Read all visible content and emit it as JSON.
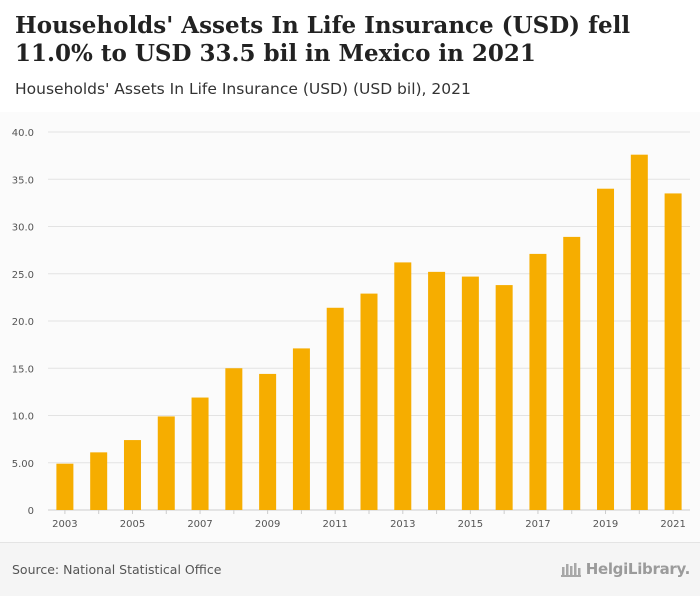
{
  "header": {
    "title": "Households' Assets In Life Insurance (USD) fell 11.0% to USD 33.5 bil in Mexico in 2021",
    "subtitle": "Households' Assets In Life Insurance (USD) (USD bil), 2021"
  },
  "footer": {
    "source": "Source: National Statistical Office",
    "brand": "HelgiLibrary."
  },
  "colors": {
    "bar": "#f6ad00",
    "grid": "#e3e3e3",
    "axis_text": "#555555"
  },
  "chart_data": {
    "type": "bar",
    "title": "Households' Assets In Life Insurance (USD) (USD bil), 2021",
    "xlabel": "",
    "ylabel": "",
    "ylim": [
      0,
      40
    ],
    "yticks": [
      0,
      5,
      10,
      15,
      20,
      25,
      30,
      35,
      40
    ],
    "ytick_labels": [
      "0",
      "5.00",
      "10.0",
      "15.0",
      "20.0",
      "25.0",
      "30.0",
      "35.0",
      "40.0"
    ],
    "categories": [
      "2003",
      "2004",
      "2005",
      "2006",
      "2007",
      "2008",
      "2009",
      "2010",
      "2011",
      "2012",
      "2013",
      "2014",
      "2015",
      "2016",
      "2017",
      "2018",
      "2019",
      "2020",
      "2021"
    ],
    "xtick_labels": [
      "2003",
      "",
      "2005",
      "",
      "2007",
      "",
      "2009",
      "",
      "2011",
      "",
      "2013",
      "",
      "2015",
      "",
      "2017",
      "",
      "2019",
      "",
      "2021"
    ],
    "values": [
      4.9,
      6.1,
      7.4,
      9.9,
      11.9,
      15.0,
      14.4,
      17.1,
      21.4,
      22.9,
      26.2,
      25.2,
      24.7,
      23.8,
      27.1,
      28.9,
      34.0,
      37.6,
      33.5
    ],
    "grid": true,
    "legend": "none"
  }
}
